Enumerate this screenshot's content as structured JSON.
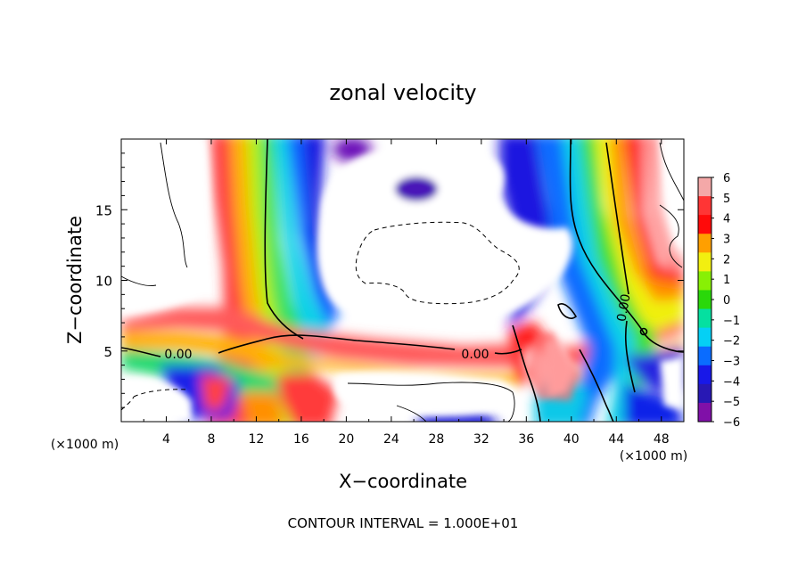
{
  "chart_data": {
    "type": "heatmap",
    "title": "zonal velocity",
    "xlabel": "X−coordinate",
    "ylabel": "Z−coordinate",
    "x_unit_label": "(×1000 m)",
    "x_ticks": [
      4,
      8,
      12,
      16,
      20,
      24,
      28,
      32,
      36,
      40,
      44,
      48
    ],
    "y_ticks": [
      5,
      10,
      15
    ],
    "xlim": [
      0,
      50
    ],
    "ylim": [
      0,
      20
    ],
    "colorbar": {
      "ticks": [
        6,
        5,
        4,
        3,
        2,
        1,
        0,
        -1,
        -2,
        -3,
        -4,
        -5,
        -6
      ],
      "labels": [
        "6",
        "5",
        "4",
        "3",
        "2",
        "1",
        "0",
        "−1",
        "−2",
        "−3",
        "−4",
        "−5",
        "−6"
      ],
      "colors": [
        "#f4a8a8",
        "#ff3535",
        "#ff0a0a",
        "#ff9f00",
        "#f2ef10",
        "#88f005",
        "#2ad80a",
        "#05e0a0",
        "#05d0f5",
        "#0a6cff",
        "#1818e8",
        "#2818b4",
        "#8010a8"
      ],
      "range": [
        -6,
        6
      ]
    },
    "contour_labels": [
      "0.00",
      "0.00",
      "0.00"
    ],
    "footer": "CONTOUR INTERVAL = 1.000E+01"
  }
}
